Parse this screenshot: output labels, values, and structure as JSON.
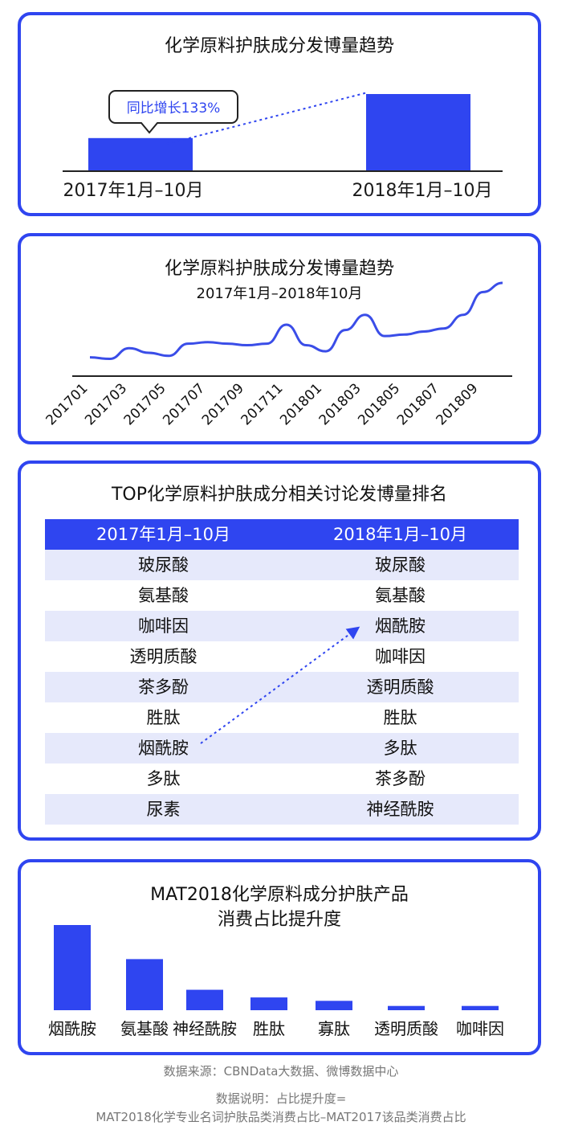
{
  "card1": {
    "title": "化学原料护肤成分发博量趋势",
    "callout": "同比增长133%",
    "bar_labels": [
      "2017年1月–10月",
      "2018年1月–10月"
    ]
  },
  "card2": {
    "title": "化学原料护肤成分发博量趋势",
    "subtitle": "2017年1月–2018年10月",
    "tick_labels": [
      "201701",
      "201703",
      "201705",
      "201707",
      "201709",
      "201711",
      "201801",
      "201803",
      "201805",
      "201807",
      "201809"
    ]
  },
  "card3": {
    "title": "TOP化学原料护肤成分相关讨论发博量排名",
    "headers": [
      "2017年1月–10月",
      "2018年1月–10月"
    ],
    "rows": [
      [
        "玻尿酸",
        "玻尿酸"
      ],
      [
        "氨基酸",
        "氨基酸"
      ],
      [
        "咖啡因",
        "烟酰胺"
      ],
      [
        "透明质酸",
        "咖啡因"
      ],
      [
        "茶多酚",
        "透明质酸"
      ],
      [
        "胜肽",
        "胜肽"
      ],
      [
        "烟酰胺",
        "多肽"
      ],
      [
        "多肽",
        "茶多酚"
      ],
      [
        "尿素",
        "神经酰胺"
      ]
    ]
  },
  "card4": {
    "title_line1": "MAT2018化学原料成分护肤产品",
    "title_line2": "消费占比提升度"
  },
  "footer": {
    "source": "数据来源：CBNData大数据、微博数据中心",
    "note_line1": "数据说明：占比提升度=",
    "note_line2": "MAT2018化学专业名词护肤品类消费占比–MAT2017该品类消费占比"
  },
  "colors": {
    "accent": "#2f45f0",
    "row_stripe": "#e6e9fb",
    "line": "#3a4de8"
  },
  "chart_data": [
    {
      "type": "bar",
      "categories": [
        "2017年1月–10月",
        "2018年1月–10月"
      ],
      "values": [
        1,
        2.33
      ],
      "annotation": "同比增长133%"
    },
    {
      "type": "line",
      "x": [
        "201701",
        "201702",
        "201703",
        "201704",
        "201705",
        "201706",
        "201707",
        "201708",
        "201709",
        "201710",
        "201711",
        "201712",
        "201801",
        "201802",
        "201803",
        "201804",
        "201805",
        "201806",
        "201807",
        "201808",
        "201809",
        "201810"
      ],
      "values": [
        12,
        10,
        24,
        18,
        14,
        30,
        32,
        30,
        28,
        30,
        55,
        28,
        20,
        48,
        68,
        40,
        42,
        46,
        50,
        68,
        98,
        110
      ],
      "tick_labels": [
        "201701",
        "201703",
        "201705",
        "201707",
        "201709",
        "201711",
        "201801",
        "201803",
        "201805",
        "201807",
        "201809"
      ]
    },
    {
      "type": "table",
      "columns": [
        "2017年1月–10月",
        "2018年1月–10月"
      ],
      "rows": [
        [
          "玻尿酸",
          "玻尿酸"
        ],
        [
          "氨基酸",
          "氨基酸"
        ],
        [
          "咖啡因",
          "烟酰胺"
        ],
        [
          "透明质酸",
          "咖啡因"
        ],
        [
          "茶多酚",
          "透明质酸"
        ],
        [
          "胜肽",
          "胜肽"
        ],
        [
          "烟酰胺",
          "多肽"
        ],
        [
          "多肽",
          "茶多酚"
        ],
        [
          "尿素",
          "神经酰胺"
        ]
      ]
    },
    {
      "type": "bar",
      "categories": [
        "烟酰胺",
        "氨基酸",
        "神经酰胺",
        "胜肽",
        "寡肽",
        "透明质酸",
        "咖啡因"
      ],
      "values": [
        100,
        60,
        24,
        15,
        11,
        5,
        5
      ]
    }
  ]
}
